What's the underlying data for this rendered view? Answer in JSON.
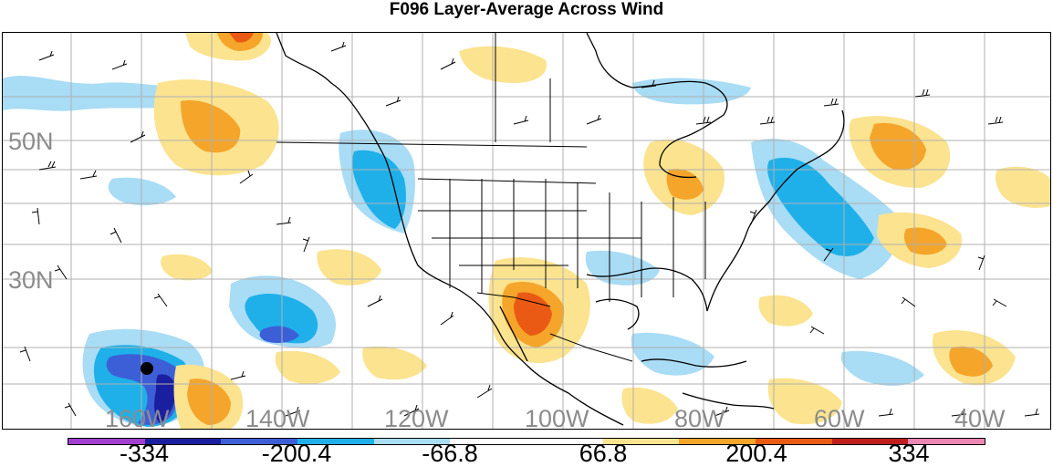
{
  "title": "F096 Layer-Average Across Wind",
  "map": {
    "lat_labels": [
      "50N",
      "30N"
    ],
    "lon_labels": [
      "160W",
      "140W",
      "120W",
      "100W",
      "80W",
      "60W",
      "40W"
    ],
    "label_color": "#8c8c8c",
    "grid_color": "#b0b0b0"
  },
  "legend": {
    "labels": [
      "-334",
      "-200.4",
      "-66.8",
      "66.8",
      "200.4",
      "334"
    ],
    "colors": [
      "#a13fd0",
      "#1a1fa0",
      "#3c5fd8",
      "#1fb0ea",
      "#a9dcf5",
      "#ffffff",
      "#ffffff",
      "#fbe38f",
      "#f4a52a",
      "#ea5a14",
      "#c01e1e",
      "#ec86b4"
    ]
  }
}
